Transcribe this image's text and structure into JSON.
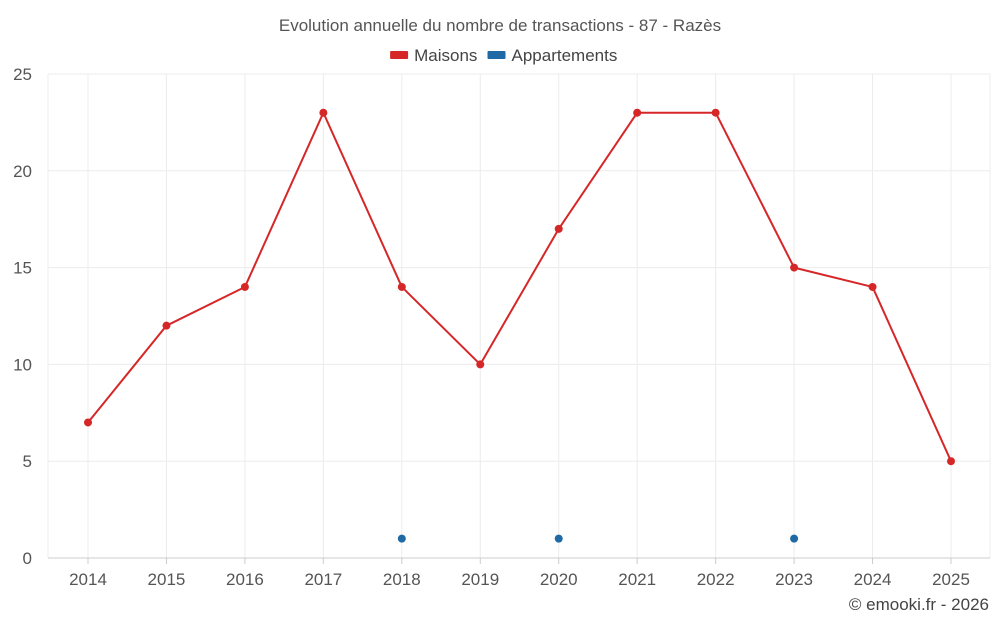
{
  "chart_data": {
    "type": "line",
    "title": "Evolution annuelle du nombre de transactions - 87 - Razès",
    "xlabel": "",
    "ylabel": "",
    "categories": [
      "2014",
      "2015",
      "2016",
      "2017",
      "2018",
      "2019",
      "2020",
      "2021",
      "2022",
      "2023",
      "2024",
      "2025"
    ],
    "ylim": [
      0,
      25
    ],
    "yticks": [
      0,
      5,
      10,
      15,
      20,
      25
    ],
    "grid": true,
    "legend_position": "top-center",
    "series": [
      {
        "name": "Maisons",
        "color": "#d62728",
        "values": [
          7,
          12,
          14,
          23,
          14,
          10,
          17,
          23,
          23,
          15,
          14,
          5
        ]
      },
      {
        "name": "Appartements",
        "color": "#1f6aa5",
        "values": [
          null,
          null,
          null,
          null,
          1,
          null,
          1,
          null,
          null,
          1,
          null,
          null
        ]
      }
    ],
    "credit": "© emooki.fr - 2026"
  }
}
